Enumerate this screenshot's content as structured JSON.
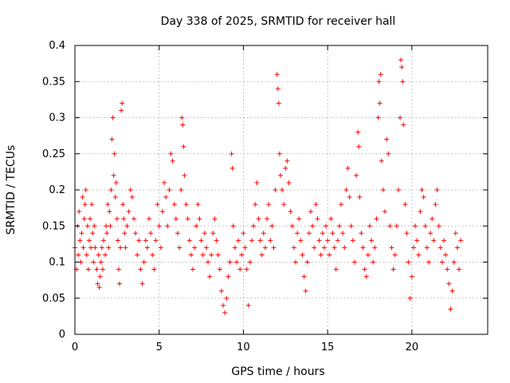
{
  "chart_data": {
    "type": "scatter",
    "title": "Day 338 of 2025, SRMTID for receiver hall",
    "xlabel": "GPS time / hours",
    "ylabel": "SRMTID / TECUs",
    "xlim": [
      0,
      24.5
    ],
    "ylim": [
      0,
      0.4
    ],
    "xticks": [
      "0",
      "5",
      "10",
      "15",
      "20"
    ],
    "yticks": [
      "0",
      "0.05",
      "0.1",
      "0.15",
      "0.2",
      "0.25",
      "0.3",
      "0.35",
      "0.4"
    ],
    "grid": true,
    "marker": "plus",
    "color": "#ff0000",
    "series": [
      {
        "points": [
          [
            0.0,
            0.12
          ],
          [
            0.1,
            0.09
          ],
          [
            0.15,
            0.15
          ],
          [
            0.2,
            0.11
          ],
          [
            0.25,
            0.17
          ],
          [
            0.3,
            0.13
          ],
          [
            0.35,
            0.1
          ],
          [
            0.4,
            0.14
          ],
          [
            0.45,
            0.19
          ],
          [
            0.5,
            0.12
          ],
          [
            0.55,
            0.16
          ],
          [
            0.6,
            0.18
          ],
          [
            0.65,
            0.2
          ],
          [
            0.7,
            0.11
          ],
          [
            0.75,
            0.15
          ],
          [
            0.8,
            0.09
          ],
          [
            0.85,
            0.13
          ],
          [
            0.9,
            0.16
          ],
          [
            0.95,
            0.12
          ],
          [
            1.0,
            0.18
          ],
          [
            1.05,
            0.14
          ],
          [
            1.1,
            0.1
          ],
          [
            1.15,
            0.15
          ],
          [
            1.2,
            0.12
          ],
          [
            1.3,
            0.09
          ],
          [
            1.35,
            0.07
          ],
          [
            1.4,
            0.11
          ],
          [
            1.45,
            0.065
          ],
          [
            1.5,
            0.08
          ],
          [
            1.55,
            0.1
          ],
          [
            1.6,
            0.12
          ],
          [
            1.65,
            0.09
          ],
          [
            1.7,
            0.13
          ],
          [
            1.8,
            0.11
          ],
          [
            1.85,
            0.15
          ],
          [
            1.9,
            0.14
          ],
          [
            1.95,
            0.18
          ],
          [
            2.0,
            0.12
          ],
          [
            2.05,
            0.17
          ],
          [
            2.1,
            0.15
          ],
          [
            2.15,
            0.2
          ],
          [
            2.2,
            0.27
          ],
          [
            2.25,
            0.3
          ],
          [
            2.3,
            0.22
          ],
          [
            2.35,
            0.25
          ],
          [
            2.4,
            0.19
          ],
          [
            2.45,
            0.21
          ],
          [
            2.5,
            0.16
          ],
          [
            2.55,
            0.13
          ],
          [
            2.6,
            0.09
          ],
          [
            2.65,
            0.07
          ],
          [
            2.7,
            0.12
          ],
          [
            2.75,
            0.31
          ],
          [
            2.8,
            0.32
          ],
          [
            2.85,
            0.18
          ],
          [
            2.9,
            0.16
          ],
          [
            2.95,
            0.14
          ],
          [
            3.0,
            0.12
          ],
          [
            3.1,
            0.15
          ],
          [
            3.2,
            0.17
          ],
          [
            3.3,
            0.2
          ],
          [
            3.4,
            0.19
          ],
          [
            3.5,
            0.16
          ],
          [
            3.6,
            0.14
          ],
          [
            3.7,
            0.11
          ],
          [
            3.8,
            0.13
          ],
          [
            3.9,
            0.09
          ],
          [
            4.0,
            0.07
          ],
          [
            4.1,
            0.1
          ],
          [
            4.2,
            0.13
          ],
          [
            4.3,
            0.12
          ],
          [
            4.4,
            0.16
          ],
          [
            4.5,
            0.14
          ],
          [
            4.6,
            0.11
          ],
          [
            4.7,
            0.09
          ],
          [
            4.8,
            0.13
          ],
          [
            4.9,
            0.18
          ],
          [
            5.0,
            0.15
          ],
          [
            5.1,
            0.12
          ],
          [
            5.2,
            0.17
          ],
          [
            5.3,
            0.21
          ],
          [
            5.4,
            0.19
          ],
          [
            5.5,
            0.15
          ],
          [
            5.6,
            0.2
          ],
          [
            5.7,
            0.25
          ],
          [
            5.8,
            0.24
          ],
          [
            5.9,
            0.18
          ],
          [
            6.0,
            0.16
          ],
          [
            6.1,
            0.14
          ],
          [
            6.2,
            0.12
          ],
          [
            6.3,
            0.2
          ],
          [
            6.35,
            0.3
          ],
          [
            6.4,
            0.29
          ],
          [
            6.45,
            0.26
          ],
          [
            6.5,
            0.22
          ],
          [
            6.6,
            0.18
          ],
          [
            6.7,
            0.16
          ],
          [
            6.8,
            0.13
          ],
          [
            6.9,
            0.11
          ],
          [
            7.0,
            0.09
          ],
          [
            7.1,
            0.12
          ],
          [
            7.2,
            0.15
          ],
          [
            7.3,
            0.18
          ],
          [
            7.4,
            0.16
          ],
          [
            7.5,
            0.13
          ],
          [
            7.6,
            0.11
          ],
          [
            7.7,
            0.14
          ],
          [
            7.8,
            0.12
          ],
          [
            7.9,
            0.1
          ],
          [
            8.0,
            0.08
          ],
          [
            8.1,
            0.11
          ],
          [
            8.2,
            0.14
          ],
          [
            8.3,
            0.16
          ],
          [
            8.4,
            0.13
          ],
          [
            8.5,
            0.11
          ],
          [
            8.6,
            0.09
          ],
          [
            8.7,
            0.06
          ],
          [
            8.8,
            0.04
          ],
          [
            8.9,
            0.03
          ],
          [
            9.0,
            0.05
          ],
          [
            9.1,
            0.08
          ],
          [
            9.2,
            0.1
          ],
          [
            9.3,
            0.25
          ],
          [
            9.35,
            0.23
          ],
          [
            9.4,
            0.15
          ],
          [
            9.5,
            0.12
          ],
          [
            9.6,
            0.1
          ],
          [
            9.7,
            0.13
          ],
          [
            9.8,
            0.09
          ],
          [
            9.9,
            0.11
          ],
          [
            10.0,
            0.14
          ],
          [
            10.1,
            0.12
          ],
          [
            10.2,
            0.09
          ],
          [
            10.3,
            0.04
          ],
          [
            10.4,
            0.1
          ],
          [
            10.5,
            0.13
          ],
          [
            10.6,
            0.15
          ],
          [
            10.7,
            0.18
          ],
          [
            10.8,
            0.21
          ],
          [
            10.9,
            0.16
          ],
          [
            11.0,
            0.13
          ],
          [
            11.1,
            0.11
          ],
          [
            11.2,
            0.14
          ],
          [
            11.3,
            0.12
          ],
          [
            11.4,
            0.16
          ],
          [
            11.5,
            0.18
          ],
          [
            11.6,
            0.13
          ],
          [
            11.7,
            0.15
          ],
          [
            11.8,
            0.12
          ],
          [
            11.9,
            0.2
          ],
          [
            12.0,
            0.36
          ],
          [
            12.05,
            0.34
          ],
          [
            12.1,
            0.32
          ],
          [
            12.15,
            0.25
          ],
          [
            12.2,
            0.22
          ],
          [
            12.3,
            0.2
          ],
          [
            12.4,
            0.18
          ],
          [
            12.5,
            0.23
          ],
          [
            12.6,
            0.24
          ],
          [
            12.7,
            0.21
          ],
          [
            12.8,
            0.17
          ],
          [
            12.9,
            0.15
          ],
          [
            13.0,
            0.12
          ],
          [
            13.1,
            0.1
          ],
          [
            13.2,
            0.14
          ],
          [
            13.3,
            0.16
          ],
          [
            13.4,
            0.13
          ],
          [
            13.5,
            0.11
          ],
          [
            13.6,
            0.08
          ],
          [
            13.7,
            0.06
          ],
          [
            13.8,
            0.1
          ],
          [
            13.9,
            0.14
          ],
          [
            14.0,
            0.17
          ],
          [
            14.1,
            0.15
          ],
          [
            14.2,
            0.12
          ],
          [
            14.3,
            0.18
          ],
          [
            14.4,
            0.16
          ],
          [
            14.5,
            0.13
          ],
          [
            14.6,
            0.11
          ],
          [
            14.7,
            0.14
          ],
          [
            14.8,
            0.12
          ],
          [
            14.9,
            0.15
          ],
          [
            15.0,
            0.13
          ],
          [
            15.1,
            0.11
          ],
          [
            15.2,
            0.16
          ],
          [
            15.3,
            0.14
          ],
          [
            15.4,
            0.12
          ],
          [
            15.5,
            0.09
          ],
          [
            15.6,
            0.13
          ],
          [
            15.7,
            0.15
          ],
          [
            15.8,
            0.18
          ],
          [
            15.9,
            0.14
          ],
          [
            16.0,
            0.12
          ],
          [
            16.1,
            0.2
          ],
          [
            16.2,
            0.23
          ],
          [
            16.3,
            0.19
          ],
          [
            16.4,
            0.15
          ],
          [
            16.5,
            0.13
          ],
          [
            16.6,
            0.1
          ],
          [
            16.7,
            0.22
          ],
          [
            16.8,
            0.28
          ],
          [
            16.85,
            0.26
          ],
          [
            16.9,
            0.19
          ],
          [
            17.0,
            0.14
          ],
          [
            17.1,
            0.12
          ],
          [
            17.2,
            0.09
          ],
          [
            17.3,
            0.08
          ],
          [
            17.4,
            0.11
          ],
          [
            17.5,
            0.15
          ],
          [
            17.6,
            0.13
          ],
          [
            17.7,
            0.1
          ],
          [
            17.8,
            0.12
          ],
          [
            17.9,
            0.16
          ],
          [
            18.0,
            0.3
          ],
          [
            18.05,
            0.35
          ],
          [
            18.1,
            0.32
          ],
          [
            18.15,
            0.36
          ],
          [
            18.2,
            0.24
          ],
          [
            18.3,
            0.2
          ],
          [
            18.4,
            0.17
          ],
          [
            18.5,
            0.27
          ],
          [
            18.6,
            0.25
          ],
          [
            18.7,
            0.15
          ],
          [
            18.8,
            0.12
          ],
          [
            18.9,
            0.09
          ],
          [
            19.0,
            0.11
          ],
          [
            19.1,
            0.15
          ],
          [
            19.2,
            0.2
          ],
          [
            19.3,
            0.3
          ],
          [
            19.35,
            0.38
          ],
          [
            19.4,
            0.37
          ],
          [
            19.45,
            0.35
          ],
          [
            19.5,
            0.29
          ],
          [
            19.6,
            0.18
          ],
          [
            19.7,
            0.14
          ],
          [
            19.8,
            0.1
          ],
          [
            19.9,
            0.05
          ],
          [
            20.0,
            0.08
          ],
          [
            20.1,
            0.12
          ],
          [
            20.2,
            0.15
          ],
          [
            20.3,
            0.13
          ],
          [
            20.4,
            0.11
          ],
          [
            20.5,
            0.17
          ],
          [
            20.6,
            0.2
          ],
          [
            20.7,
            0.19
          ],
          [
            20.8,
            0.15
          ],
          [
            20.9,
            0.12
          ],
          [
            21.0,
            0.1
          ],
          [
            21.1,
            0.14
          ],
          [
            21.2,
            0.16
          ],
          [
            21.3,
            0.13
          ],
          [
            21.4,
            0.18
          ],
          [
            21.5,
            0.2
          ],
          [
            21.6,
            0.15
          ],
          [
            21.7,
            0.12
          ],
          [
            21.8,
            0.1
          ],
          [
            21.9,
            0.13
          ],
          [
            22.0,
            0.11
          ],
          [
            22.1,
            0.09
          ],
          [
            22.2,
            0.07
          ],
          [
            22.3,
            0.035
          ],
          [
            22.4,
            0.06
          ],
          [
            22.5,
            0.1
          ],
          [
            22.6,
            0.14
          ],
          [
            22.7,
            0.12
          ],
          [
            22.8,
            0.09
          ],
          [
            22.9,
            0.13
          ]
        ]
      }
    ]
  }
}
